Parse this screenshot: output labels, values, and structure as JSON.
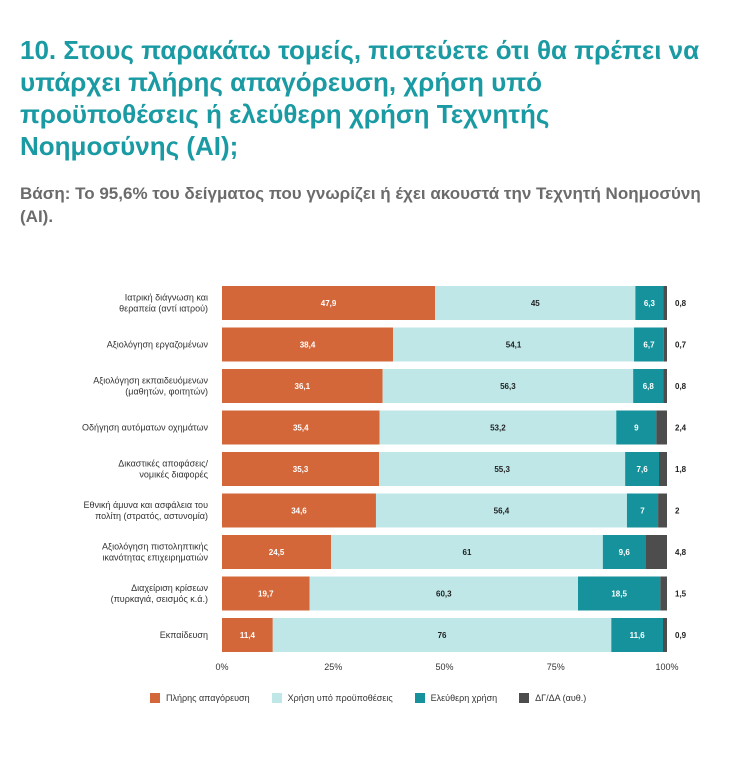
{
  "header": {
    "title": "10. Στους παρακάτω τομείς, πιστεύετε ότι θα πρέπει να υπάρχει πλήρης απαγόρευση, χρήση υπό προϋποθέσεις ή ελεύθερη χρήση Τεχνητής Νοημοσύνης (AI);",
    "subtitle": "Βάση: Το 95,6% του δείγματος που γνωρίζει ή έχει ακουστά την Τεχνητή Νοημοσύνη (AI)."
  },
  "chart_data": {
    "type": "bar",
    "orientation": "horizontal",
    "stacked": true,
    "categories": [
      [
        "Ιατρική διάγνωση και",
        "θεραπεία (αντί ιατρού)"
      ],
      [
        "Αξιολόγηση εργαζομένων"
      ],
      [
        "Αξιολόγηση εκπαιδευόμενων",
        "(μαθητών, φοιτητών)"
      ],
      [
        "Οδήγηση αυτόματων οχημάτων"
      ],
      [
        "Δικαστικές αποφάσεις/",
        "νομικές διαφορές"
      ],
      [
        "Εθνική άμυνα και ασφάλεια του",
        "πολίτη (στρατός, αστυνομία)"
      ],
      [
        "Αξιολόγηση πιστοληπτικής",
        "ικανότητας επιχειρηματιών"
      ],
      [
        "Διαχείριση κρίσεων",
        "(πυρκαγιά, σεισμός κ.ά.)"
      ],
      [
        "Εκπαίδευση"
      ]
    ],
    "series": [
      {
        "name": "Πλήρης απαγόρευση",
        "color": "#d4673a",
        "label_color": "#ffffff",
        "values": [
          47.9,
          38.4,
          36.1,
          35.4,
          35.3,
          34.6,
          24.5,
          19.7,
          11.4
        ],
        "labels": [
          "47,9",
          "38,4",
          "36,1",
          "35,4",
          "35,3",
          "34,6",
          "24,5",
          "19,7",
          "11,4"
        ]
      },
      {
        "name": "Χρήση υπό προϋποθέσεις",
        "color": "#bfe7e8",
        "label_color": "#222222",
        "values": [
          45,
          54.1,
          56.3,
          53.2,
          55.3,
          56.4,
          61,
          60.3,
          76
        ],
        "labels": [
          "45",
          "54,1",
          "56,3",
          "53,2",
          "55,3",
          "56,4",
          "61",
          "60,3",
          "76"
        ]
      },
      {
        "name": "Ελεύθερη χρήση",
        "color": "#15929c",
        "label_color": "#ffffff",
        "values": [
          6.3,
          6.7,
          6.8,
          9,
          7.6,
          7,
          9.6,
          18.5,
          11.6
        ],
        "labels": [
          "6,3",
          "6,7",
          "6,8",
          "9",
          "7,6",
          "7",
          "9,6",
          "18,5",
          "11,6"
        ]
      },
      {
        "name": "ΔΓ/ΔΑ (αυθ.)",
        "color": "#4d4d4d",
        "label_color": "#222222",
        "values": [
          0.8,
          0.7,
          0.8,
          2.4,
          1.8,
          2,
          4.8,
          1.5,
          0.9
        ],
        "labels": [
          "0,8",
          "0,7",
          "0,8",
          "2,4",
          "1,8",
          "2",
          "4,8",
          "1,5",
          "0,9"
        ]
      }
    ],
    "x_ticks": [
      "0%",
      "25%",
      "50%",
      "75%",
      "100%"
    ],
    "xlim": [
      0,
      100
    ],
    "legend_position": "bottom",
    "grid": false
  }
}
